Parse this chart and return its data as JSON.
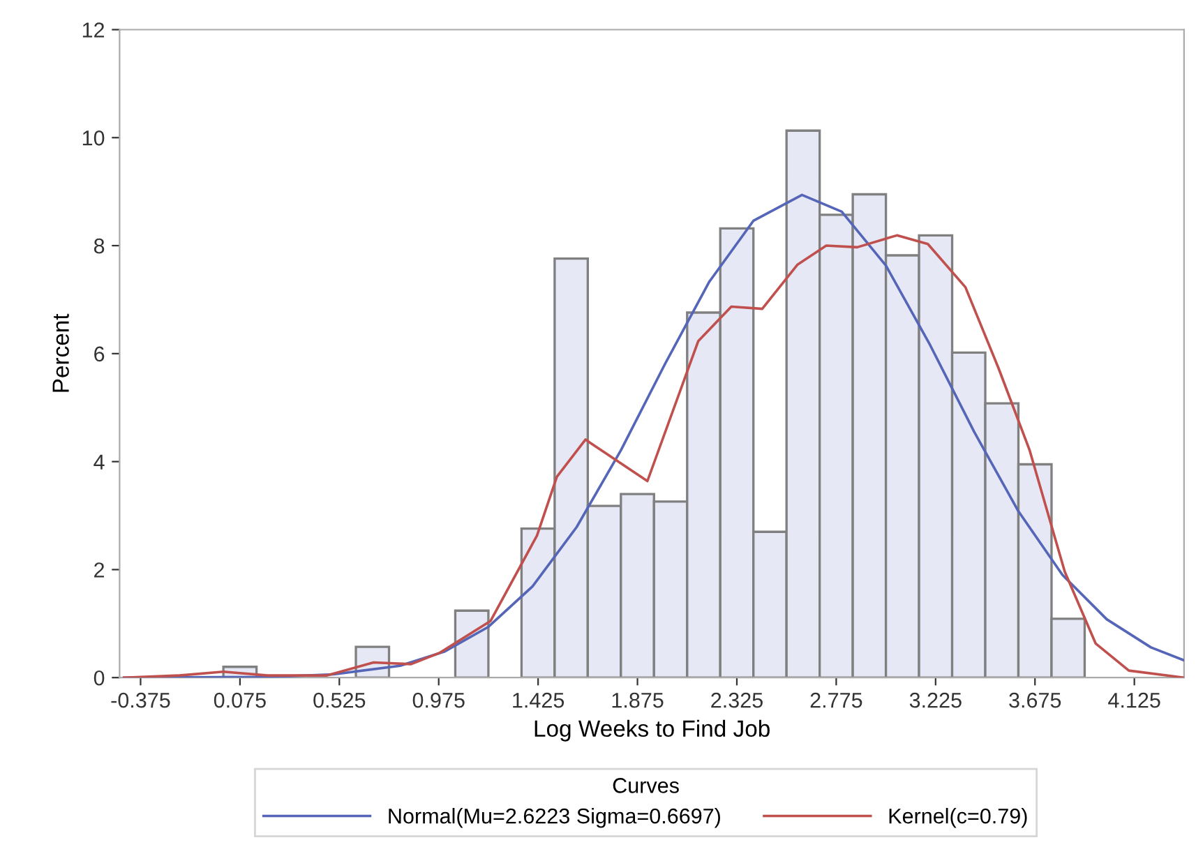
{
  "chart_data": {
    "type": "histogram",
    "xlabel": "Log Weeks to Find Job",
    "ylabel": "Percent",
    "legend_title": "Curves",
    "legend": "bottom",
    "color": "#e6e9f5",
    "bins": [
      0,
      0.15,
      0.3,
      0.45,
      0.6,
      0.75,
      0.9,
      1.05,
      1.2,
      1.35,
      1.5,
      1.65,
      1.8,
      1.95,
      2.1,
      2.25,
      2.4,
      2.55,
      2.7,
      2.85,
      3.0,
      3.15,
      3.3,
      3.45,
      3.6,
      3.75,
      3.9
    ],
    "values": [
      0.2,
      0,
      0,
      0,
      0.57,
      0,
      0,
      1.24,
      0,
      2.76,
      7.76,
      3.18,
      3.4,
      3.26,
      6.76,
      8.32,
      2.7,
      10.13,
      8.57,
      8.95,
      7.82,
      8.19,
      6.02,
      5.08,
      3.95,
      1.09
    ],
    "series": [
      {
        "type": "line",
        "name": "Normal(Mu=2.6223 Sigma=0.6697)",
        "color": "#5566b8",
        "x": [
          -0.45,
          0.2,
          0.5,
          0.8,
          1.0,
          1.2,
          1.4,
          1.6,
          1.8,
          2.0,
          2.2,
          2.4,
          2.62,
          2.8,
          3.0,
          3.2,
          3.4,
          3.6,
          3.8,
          4.0,
          4.2,
          4.35
        ],
        "values": [
          0,
          0.01,
          0.06,
          0.22,
          0.48,
          0.94,
          1.69,
          2.79,
          4.21,
          5.81,
          7.33,
          8.46,
          8.94,
          8.63,
          7.63,
          6.16,
          4.55,
          3.08,
          1.9,
          1.08,
          0.56,
          0.32
        ]
      },
      {
        "type": "line",
        "name": "Kernel(c=0.79)",
        "color": "#c0504d",
        "x": [
          -0.45,
          -0.2,
          0.0,
          0.2,
          0.47,
          0.68,
          0.85,
          0.98,
          1.21,
          1.42,
          1.51,
          1.64,
          1.66,
          1.92,
          2.15,
          2.3,
          2.44,
          2.6,
          2.73,
          2.87,
          3.05,
          3.19,
          3.36,
          3.51,
          3.65,
          3.81,
          3.95,
          4.1,
          4.35
        ],
        "values": [
          0,
          0.04,
          0.11,
          0.04,
          0.04,
          0.28,
          0.25,
          0.46,
          1.05,
          2.63,
          3.72,
          4.41,
          4.35,
          3.64,
          6.23,
          6.87,
          6.83,
          7.65,
          8.0,
          7.97,
          8.19,
          8.03,
          7.23,
          5.73,
          4.22,
          1.96,
          0.63,
          0.13,
          0
        ]
      }
    ],
    "xlim": [
      -0.47,
      4.35
    ],
    "xticks": [
      -0.375,
      0.075,
      0.525,
      0.975,
      1.425,
      1.875,
      2.325,
      2.775,
      3.225,
      3.675,
      4.125
    ],
    "ylim": [
      0,
      12
    ],
    "yticks": [
      0,
      2,
      4,
      6,
      8,
      10,
      12
    ]
  }
}
